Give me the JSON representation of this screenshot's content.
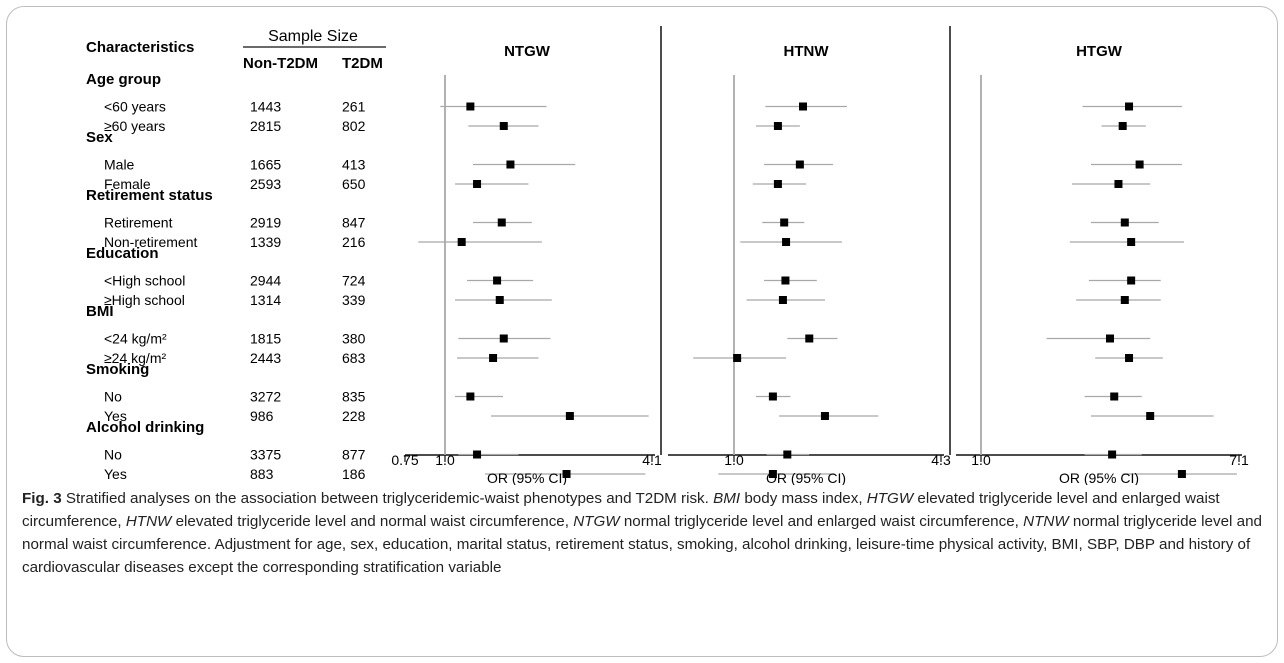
{
  "table": {
    "char_header": "Characteristics",
    "sample_size_header": "Sample Size",
    "col1_header": "Non-T2DM",
    "col2_header": "T2DM"
  },
  "panels": [
    {
      "title": "NTGW",
      "ticks": [
        "0.75",
        "1.0",
        "4.1"
      ],
      "xlabel": "OR (95% CI)"
    },
    {
      "title": "HTNW",
      "ticks": [
        "1.0",
        "4.3"
      ],
      "xlabel": "OR (95% CI)"
    },
    {
      "title": "HTGW",
      "ticks": [
        "1.0",
        "7.1"
      ],
      "xlabel": "OR (95% CI)"
    }
  ],
  "caption": {
    "label": "Fig. 3",
    "text": "Stratified analyses on the association between triglyceridemic-waist phenotypes and T2DM risk.",
    "abbr": [
      {
        "term": "BMI",
        "def": "body mass index,"
      },
      {
        "term": "HTGW",
        "def": "elevated triglyceride level and enlarged waist circumference,"
      },
      {
        "term": "HTNW",
        "def": "elevated triglyceride level and normal waist circumference,"
      },
      {
        "term": "NTGW",
        "def": "normal triglyceride level and enlarged waist circumference,"
      },
      {
        "term": "NTNW",
        "def": "normal triglyceride level and normal waist circumference."
      }
    ],
    "tail": "Adjustment for age, sex, education, marital status, retirement status, smoking, alcohol drinking, leisure-time physical activity, BMI, SBP, DBP and history of cardiovascular diseases except the corresponding stratification variable"
  },
  "chart_data": {
    "type": "forest",
    "groups": [
      {
        "name": "Age group",
        "rows": [
          {
            "label": "<60 years",
            "non_t2dm": "1443",
            "t2dm": "261"
          },
          {
            "label": "≥60 years",
            "non_t2dm": "2815",
            "t2dm": "802"
          }
        ]
      },
      {
        "name": "Sex",
        "rows": [
          {
            "label": "Male",
            "non_t2dm": "1665",
            "t2dm": "413"
          },
          {
            "label": "Female",
            "non_t2dm": "2593",
            "t2dm": "650"
          }
        ]
      },
      {
        "name": "Retirement status",
        "rows": [
          {
            "label": "Retirement",
            "non_t2dm": "2919",
            "t2dm": "847"
          },
          {
            "label": "Non-retirement",
            "non_t2dm": "1339",
            "t2dm": "216"
          }
        ]
      },
      {
        "name": "Education",
        "rows": [
          {
            "label": "<High school",
            "non_t2dm": "2944",
            "t2dm": "724"
          },
          {
            "label": "≥High school",
            "non_t2dm": "1314",
            "t2dm": "339"
          }
        ]
      },
      {
        "name": "BMI",
        "rows": [
          {
            "label": "<24 kg/m²",
            "non_t2dm": "1815",
            "t2dm": "380"
          },
          {
            "label": "≥24 kg/m²",
            "non_t2dm": "2443",
            "t2dm": "683"
          }
        ]
      },
      {
        "name": "Smoking",
        "rows": [
          {
            "label": "No",
            "non_t2dm": "3272",
            "t2dm": "835"
          },
          {
            "label": "Yes",
            "non_t2dm": "986",
            "t2dm": "228"
          }
        ]
      },
      {
        "name": "Alcohol drinking",
        "rows": [
          {
            "label": "No",
            "non_t2dm": "3375",
            "t2dm": "877"
          },
          {
            "label": "Yes",
            "non_t2dm": "883",
            "t2dm": "186"
          }
        ]
      }
    ],
    "series": [
      {
        "name": "NTGW",
        "xlim": [
          0.75,
          4.1
        ],
        "ref": 1.0,
        "or": [
          1.38,
          1.88,
          1.98,
          1.48,
          1.85,
          1.25,
          1.78,
          1.82,
          1.88,
          1.72,
          1.38,
          2.87,
          1.48,
          2.82
        ],
        "lo": [
          0.93,
          1.35,
          1.42,
          1.15,
          1.42,
          0.6,
          1.33,
          1.15,
          1.2,
          1.18,
          1.15,
          1.69,
          1.2,
          1.6
        ],
        "hi": [
          2.52,
          2.4,
          2.95,
          2.25,
          2.3,
          2.45,
          2.32,
          2.6,
          2.58,
          2.4,
          1.87,
          4.05,
          2.1,
          4.0
        ]
      },
      {
        "name": "HTNW",
        "xlim": [
          0.3,
          4.3
        ],
        "ref": 1.0,
        "or": [
          2.1,
          1.7,
          2.05,
          1.7,
          1.8,
          1.83,
          1.82,
          1.78,
          2.2,
          1.05,
          1.62,
          2.45,
          1.85,
          1.62
        ],
        "lo": [
          1.5,
          1.35,
          1.48,
          1.3,
          1.45,
          1.1,
          1.48,
          1.2,
          1.85,
          0.35,
          1.35,
          1.72,
          1.52,
          0.75
        ],
        "hi": [
          2.8,
          2.05,
          2.58,
          2.15,
          2.12,
          2.72,
          2.32,
          2.45,
          2.65,
          1.83,
          1.9,
          3.3,
          2.2,
          2.6
        ]
      },
      {
        "name": "HTGW",
        "xlim": [
          0.3,
          7.1
        ],
        "ref": 1.0,
        "or": [
          4.5,
          4.35,
          4.75,
          4.25,
          4.4,
          4.55,
          4.55,
          4.4,
          4.05,
          4.5,
          4.15,
          5.0,
          4.1,
          5.75
        ],
        "lo": [
          3.4,
          3.85,
          3.6,
          3.15,
          3.6,
          3.1,
          3.55,
          3.25,
          2.55,
          3.7,
          3.45,
          3.6,
          3.45,
          4.35
        ],
        "hi": [
          5.75,
          4.9,
          5.75,
          5.0,
          5.2,
          5.8,
          5.25,
          5.25,
          5.0,
          5.3,
          4.8,
          6.5,
          4.8,
          7.05
        ]
      }
    ]
  }
}
